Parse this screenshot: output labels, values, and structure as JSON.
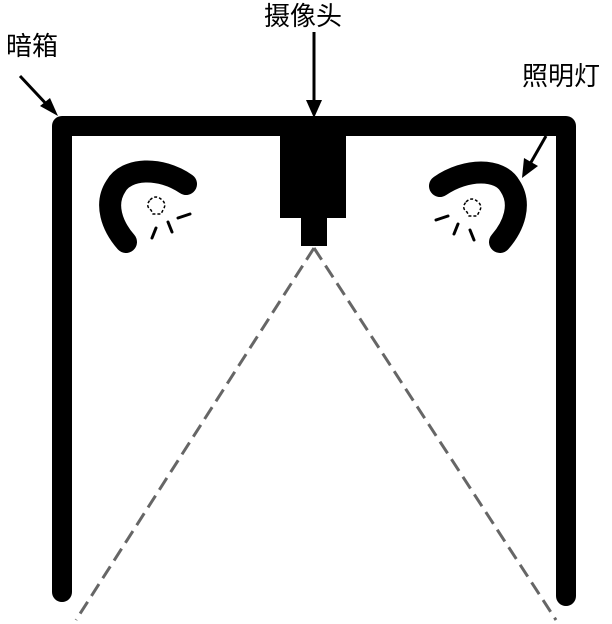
{
  "labels": {
    "dark_box": "暗箱",
    "camera": "摄像头",
    "lamp": "照明灯"
  },
  "colors": {
    "stroke": "#000000",
    "fov_dash": "#666666",
    "background": "#ffffff"
  }
}
